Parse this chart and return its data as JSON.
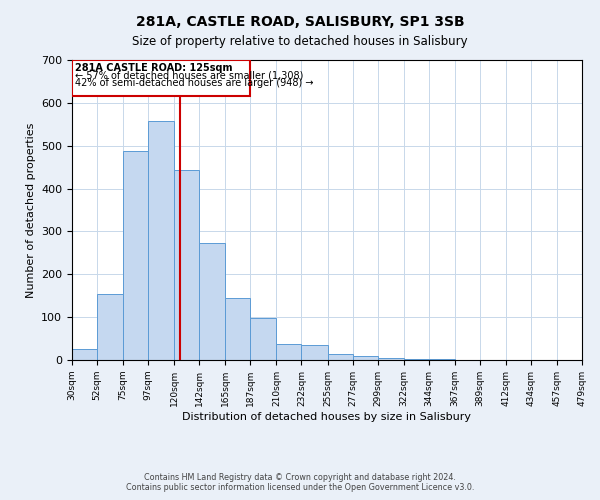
{
  "title": "281A, CASTLE ROAD, SALISBURY, SP1 3SB",
  "subtitle": "Size of property relative to detached houses in Salisbury",
  "xlabel": "Distribution of detached houses by size in Salisbury",
  "ylabel": "Number of detached properties",
  "bins": [
    "30sqm",
    "52sqm",
    "75sqm",
    "97sqm",
    "120sqm",
    "142sqm",
    "165sqm",
    "187sqm",
    "210sqm",
    "232sqm",
    "255sqm",
    "277sqm",
    "299sqm",
    "322sqm",
    "344sqm",
    "367sqm",
    "389sqm",
    "412sqm",
    "434sqm",
    "457sqm",
    "479sqm"
  ],
  "bin_edges": [
    30,
    52,
    75,
    97,
    120,
    142,
    165,
    187,
    210,
    232,
    255,
    277,
    299,
    322,
    344,
    367,
    389,
    412,
    434,
    457,
    479
  ],
  "values": [
    25,
    155,
    487,
    557,
    443,
    273,
    145,
    97,
    37,
    35,
    14,
    10,
    5,
    3,
    2,
    1,
    0,
    0,
    0,
    1
  ],
  "bar_color": "#c5d8f0",
  "bar_edge_color": "#5b9bd5",
  "property_line_x": 125,
  "property_line_color": "#cc0000",
  "annotation_title": "281A CASTLE ROAD: 125sqm",
  "annotation_line1": "← 57% of detached houses are smaller (1,308)",
  "annotation_line2": "42% of semi-detached houses are larger (948) →",
  "annotation_box_color": "#cc0000",
  "ylim": [
    0,
    700
  ],
  "yticks": [
    0,
    100,
    200,
    300,
    400,
    500,
    600,
    700
  ],
  "footer1": "Contains HM Land Registry data © Crown copyright and database right 2024.",
  "footer2": "Contains public sector information licensed under the Open Government Licence v3.0.",
  "bg_color": "#eaf0f8",
  "plot_bg_color": "#ffffff",
  "grid_color": "#c8d8ea"
}
